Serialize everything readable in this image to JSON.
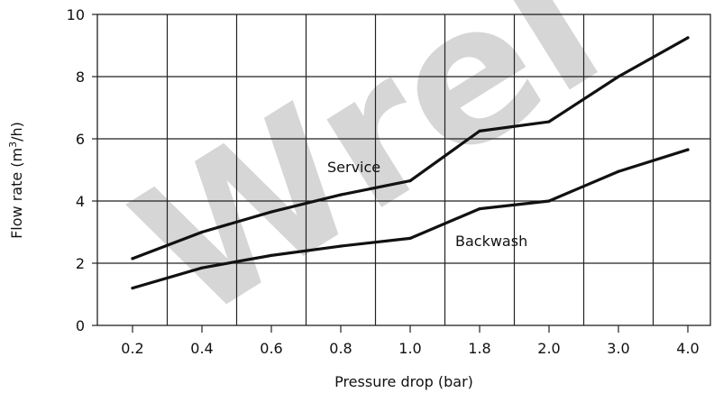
{
  "watermark": "Wrel",
  "chart_data": {
    "type": "line",
    "categories": [
      "0.2",
      "0.4",
      "0.6",
      "0.8",
      "1.0",
      "1.8",
      "2.0",
      "3.0",
      "4.0"
    ],
    "series": [
      {
        "name": "Service",
        "values": [
          2.15,
          3.0,
          3.65,
          4.2,
          4.65,
          6.25,
          6.55,
          8.0,
          9.25
        ]
      },
      {
        "name": "Backwash",
        "values": [
          1.2,
          1.85,
          2.25,
          2.55,
          2.8,
          3.75,
          4.0,
          4.95,
          5.65
        ]
      }
    ],
    "xlabel": "Pressure drop (bar)",
    "ylabel_main": "Flow rate (m",
    "ylabel_sup": "3",
    "ylabel_end": "/h)",
    "yticks": [
      "0",
      "2",
      "4",
      "6",
      "8",
      "10"
    ],
    "ylim": [
      0,
      10
    ],
    "grid": true,
    "line_color": "#111111",
    "grid_color": "#222222"
  }
}
